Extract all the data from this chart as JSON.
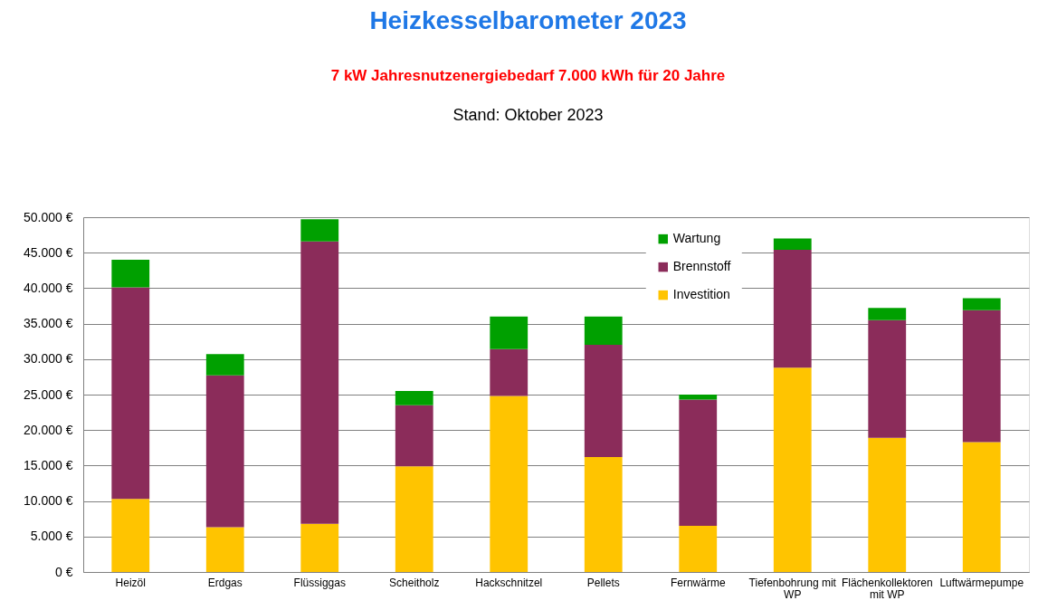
{
  "chart_data": {
    "type": "bar",
    "title": "Heizkesselbarometer 2023",
    "subtitle": "7 kW   Jahresnutzenergiebedarf 7.000 kWh für 20 Jahre",
    "annotations": [
      "Stand: Oktober 2023"
    ],
    "categories": [
      "Heizöl",
      "Erdgas",
      "Flüssiggas",
      "Scheitholz",
      "Hackschnitzel",
      "Pellets",
      "Fernwärme",
      "Tiefenbohrung mit WP",
      "Flächenkollektoren mit WP",
      "Luftwärmepumpe"
    ],
    "series": [
      {
        "name": "Investition",
        "color": "#ffc400",
        "values": [
          10300,
          6300,
          6800,
          14900,
          24800,
          16200,
          6500,
          28800,
          18900,
          18300
        ]
      },
      {
        "name": "Brennstoff",
        "color": "#8b2c5a",
        "values": [
          29800,
          21400,
          39800,
          8600,
          6600,
          15800,
          17800,
          16600,
          16600,
          18600
        ]
      },
      {
        "name": "Wartung",
        "color": "#00a000",
        "values": [
          3900,
          3000,
          3100,
          2000,
          4600,
          4000,
          700,
          1600,
          1700,
          1700
        ]
      }
    ],
    "stacked": true,
    "ylim": [
      0,
      50000
    ],
    "yticks": [
      {
        "value": 0,
        "label": "0 €"
      },
      {
        "value": 5000,
        "label": "5.000 €"
      },
      {
        "value": 10000,
        "label": "10.000 €"
      },
      {
        "value": 15000,
        "label": "15.000 €"
      },
      {
        "value": 20000,
        "label": "20.000 €"
      },
      {
        "value": 25000,
        "label": "25.000 €"
      },
      {
        "value": 30000,
        "label": "30.000 €"
      },
      {
        "value": 35000,
        "label": "35.000 €"
      },
      {
        "value": 40000,
        "label": "40.000 €"
      },
      {
        "value": 45000,
        "label": "45.000 €"
      },
      {
        "value": 50000,
        "label": "50.000 €"
      }
    ],
    "grid": "y",
    "legend": "top right"
  }
}
